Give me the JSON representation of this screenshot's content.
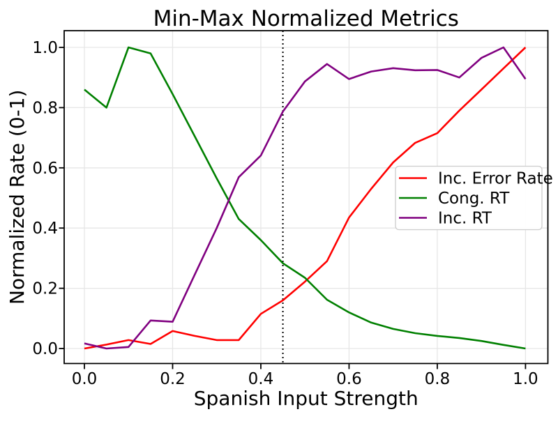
{
  "chart_data": {
    "type": "line",
    "title": "Min-Max Normalized Metrics",
    "xlabel": "Spanish Input Strength",
    "ylabel": "Normalized Rate (0-1)",
    "x": [
      0.0,
      0.05,
      0.1,
      0.15,
      0.2,
      0.25,
      0.3,
      0.35,
      0.4,
      0.45,
      0.5,
      0.55,
      0.6,
      0.65,
      0.7,
      0.75,
      0.8,
      0.85,
      0.9,
      0.95,
      1.0
    ],
    "series": [
      {
        "name": "Inc. Error Rate",
        "color": "#ff0000",
        "values": [
          0.0,
          0.013,
          0.028,
          0.015,
          0.058,
          0.042,
          0.028,
          0.028,
          0.115,
          0.16,
          0.222,
          0.29,
          0.435,
          0.53,
          0.618,
          0.683,
          0.715,
          0.79,
          0.86,
          0.93,
          1.0
        ]
      },
      {
        "name": "Cong. RT",
        "color": "#008000",
        "values": [
          0.86,
          0.8,
          1.0,
          0.98,
          0.845,
          0.705,
          0.565,
          0.43,
          0.36,
          0.283,
          0.235,
          0.162,
          0.12,
          0.086,
          0.065,
          0.051,
          0.042,
          0.035,
          0.025,
          0.012,
          0.0
        ]
      },
      {
        "name": "Inc. RT",
        "color": "#800080",
        "values": [
          0.017,
          0.0,
          0.005,
          0.093,
          0.089,
          0.245,
          0.4,
          0.569,
          0.641,
          0.787,
          0.887,
          0.945,
          0.895,
          0.92,
          0.931,
          0.924,
          0.925,
          0.9,
          0.965,
          1.0,
          0.895
        ]
      }
    ],
    "x_ticks": [
      "0.0",
      "0.2",
      "0.4",
      "0.6",
      "0.8",
      "1.0"
    ],
    "y_ticks": [
      "0.0",
      "0.2",
      "0.4",
      "0.6",
      "0.8",
      "1.0"
    ],
    "xlim": [
      -0.046,
      1.051
    ],
    "ylim": [
      -0.05,
      1.056
    ],
    "grid": true,
    "legend_position": "center right",
    "vline": {
      "x": 0.45,
      "style": "dotted",
      "color": "#000000"
    }
  }
}
